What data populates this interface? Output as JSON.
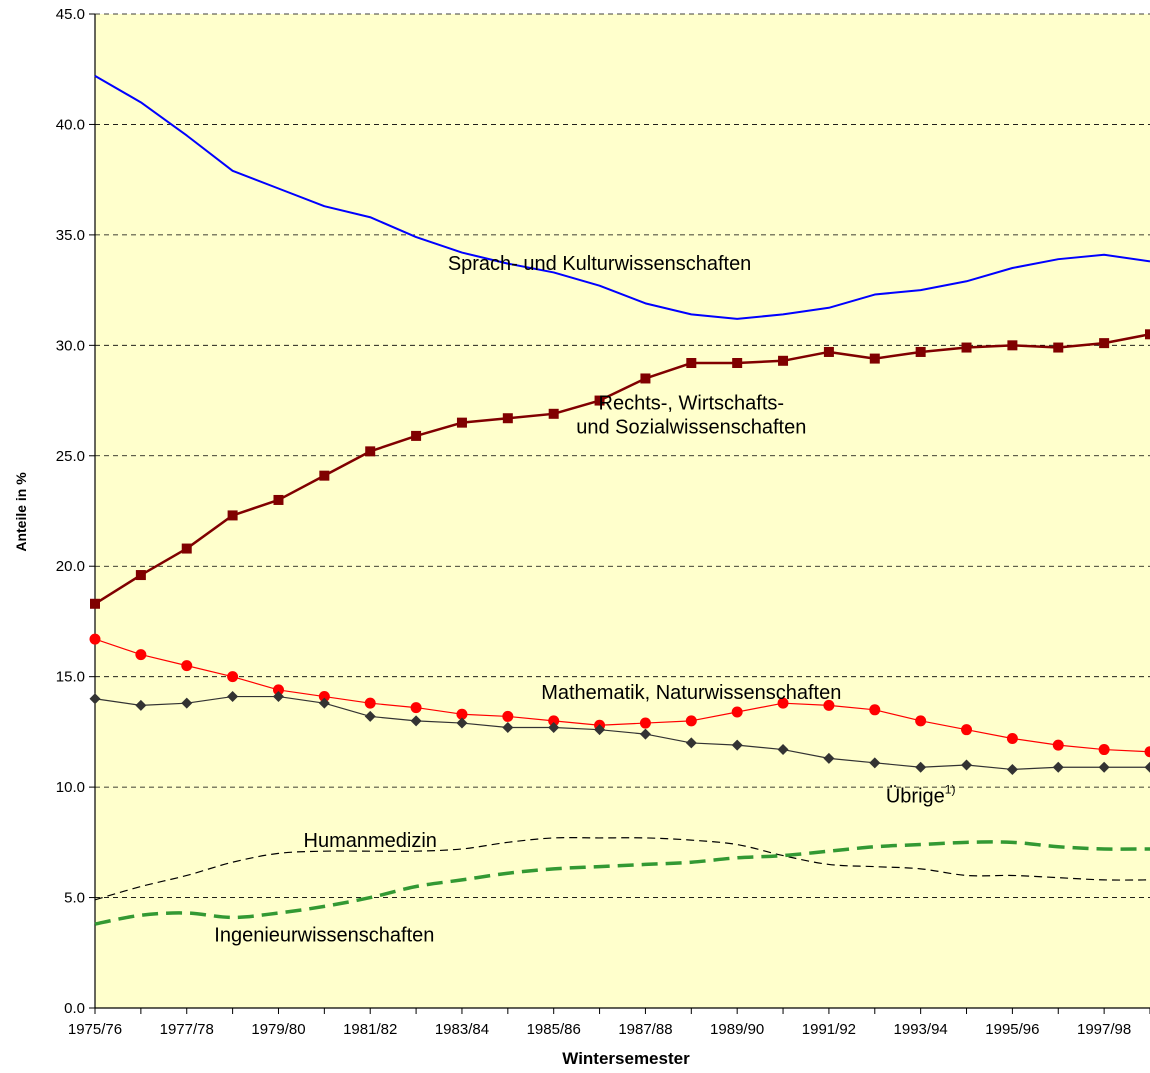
{
  "chart_data": {
    "type": "line",
    "xlabel": "Wintersemester",
    "ylabel": "Anteile in %",
    "ylim": [
      0,
      45
    ],
    "ytick_step": 5,
    "grid": "horizontal dashed",
    "plot_background": "#ffffcc",
    "categories": [
      "1975/76",
      "1976/77",
      "1977/78",
      "1978/79",
      "1979/80",
      "1980/81",
      "1981/82",
      "1982/83",
      "1983/84",
      "1984/85",
      "1985/86",
      "1986/87",
      "1987/88",
      "1988/89",
      "1989/90",
      "1990/91",
      "1991/92",
      "1992/93",
      "1993/94",
      "1994/95",
      "1995/96",
      "1996/97",
      "1997/98",
      "1998/99"
    ],
    "xtick_labels": [
      "1975/76",
      "1977/78",
      "1979/80",
      "1981/82",
      "1983/84",
      "1985/86",
      "1987/88",
      "1989/90",
      "1991/92",
      "1993/94",
      "1995/96",
      "1997/98"
    ],
    "series": [
      {
        "name": "Sprach- und Kulturwissenschaften",
        "color": "#0000ff",
        "marker": "none",
        "style": "solid",
        "values": [
          42.2,
          41.0,
          39.5,
          37.9,
          37.1,
          36.3,
          35.8,
          34.9,
          34.2,
          33.7,
          33.3,
          32.7,
          31.9,
          31.4,
          31.2,
          31.4,
          31.7,
          32.3,
          32.5,
          32.9,
          33.5,
          33.9,
          34.1,
          33.8
        ]
      },
      {
        "name": "Rechts-, Wirtschafts- und Sozialwissenschaften",
        "color": "#800000",
        "marker": "square",
        "style": "solid",
        "values": [
          18.3,
          19.6,
          20.8,
          22.3,
          23.0,
          24.1,
          25.2,
          25.9,
          26.5,
          26.7,
          26.9,
          27.5,
          28.5,
          29.2,
          29.2,
          29.3,
          29.7,
          29.4,
          29.7,
          29.9,
          30.0,
          29.9,
          30.1,
          30.5
        ]
      },
      {
        "name": "Mathematik, Naturwissenschaften",
        "color": "#ff0000",
        "marker": "circle",
        "style": "solid",
        "values": [
          16.7,
          16.0,
          15.5,
          15.0,
          14.4,
          14.1,
          13.8,
          13.6,
          13.3,
          13.2,
          13.0,
          12.8,
          12.9,
          13.0,
          13.4,
          13.8,
          13.7,
          13.5,
          13.0,
          12.6,
          12.2,
          11.9,
          11.7,
          11.6
        ]
      },
      {
        "name": "Übrige",
        "color": "#333333",
        "marker": "diamond",
        "style": "solid",
        "values": [
          14.0,
          13.7,
          13.8,
          14.1,
          14.1,
          13.8,
          13.2,
          13.0,
          12.9,
          12.7,
          12.7,
          12.6,
          12.4,
          12.0,
          11.9,
          11.7,
          11.3,
          11.1,
          10.9,
          11.0,
          10.8,
          10.9,
          10.9,
          10.9
        ]
      },
      {
        "name": "Humanmedizin",
        "color": "#000000",
        "marker": "none",
        "style": "thin-dashed",
        "values": [
          4.9,
          5.5,
          6.0,
          6.6,
          7.0,
          7.1,
          7.1,
          7.1,
          7.2,
          7.5,
          7.7,
          7.7,
          7.7,
          7.6,
          7.4,
          6.9,
          6.5,
          6.4,
          6.3,
          6.0,
          6.0,
          5.9,
          5.8,
          5.8
        ]
      },
      {
        "name": "Ingenieurwissenschaften",
        "color": "#339933",
        "marker": "none",
        "style": "thick-dashed",
        "values": [
          3.8,
          4.2,
          4.3,
          4.1,
          4.3,
          4.6,
          5.0,
          5.5,
          5.8,
          6.1,
          6.3,
          6.4,
          6.5,
          6.6,
          6.8,
          6.9,
          7.1,
          7.3,
          7.4,
          7.5,
          7.5,
          7.3,
          7.2,
          7.2
        ]
      }
    ],
    "annotations": [
      {
        "lines": [
          "Sprach- und Kulturwissenschaften"
        ],
        "at": [
          "1986/87",
          33.4
        ]
      },
      {
        "lines": [
          "Rechts-, Wirtschafts-",
          "und Sozialwissenschaften"
        ],
        "at": [
          "1988/89",
          27.1
        ]
      },
      {
        "lines": [
          "Mathematik, Naturwissenschaften"
        ],
        "at": [
          "1988/89",
          14.0
        ]
      },
      {
        "lines": [
          "Übrige"
        ],
        "superscript": "1)",
        "at": [
          "1993/94",
          9.3
        ]
      },
      {
        "lines": [
          "Humanmedizin"
        ],
        "at": [
          "1981/82",
          7.3
        ]
      },
      {
        "lines": [
          "Ingenieurwissenschaften"
        ],
        "at": [
          "1980/81",
          3.0
        ]
      }
    ]
  }
}
